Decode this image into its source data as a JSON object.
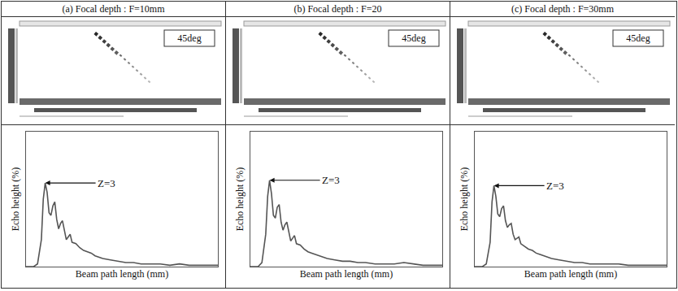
{
  "chart_data": [
    {
      "type": "line",
      "title": "(a) Focal depth : F=10mm",
      "image_label": "45deg",
      "x_label": "Beam path length (mm)",
      "y_label": "Echo height (%)",
      "annotations": [
        {
          "text": "Z=3",
          "x": 10,
          "y": 62
        }
      ],
      "x": [
        0,
        4,
        6,
        8,
        9,
        10,
        11,
        12,
        13,
        14,
        15,
        16,
        17,
        18,
        19,
        20,
        21,
        22,
        23,
        24,
        26,
        28,
        30,
        32,
        34,
        36,
        38,
        40,
        44,
        48,
        52,
        56,
        60,
        65,
        70,
        75,
        80,
        85,
        90,
        95,
        100
      ],
      "values": [
        0,
        0,
        2,
        20,
        50,
        62,
        55,
        40,
        38,
        45,
        48,
        35,
        28,
        32,
        34,
        26,
        20,
        22,
        24,
        18,
        17,
        14,
        12,
        11,
        10,
        8,
        7,
        6,
        5,
        4,
        3,
        3,
        2,
        2,
        2,
        1,
        2,
        1,
        1,
        1,
        1
      ],
      "color": "#555555",
      "xlim": [
        0,
        100
      ],
      "ylim": [
        0,
        100
      ],
      "grid": false,
      "tick_labels": false
    },
    {
      "type": "line",
      "title": "(b) Focal depth : F=20",
      "image_label": "45deg",
      "x_label": "Beam path length (mm)",
      "y_label": "Echo height (%)",
      "annotations": [
        {
          "text": "Z=3",
          "x": 10,
          "y": 64
        }
      ],
      "x": [
        0,
        4,
        6,
        8,
        9,
        10,
        11,
        12,
        13,
        14,
        15,
        16,
        17,
        18,
        19,
        20,
        21,
        22,
        23,
        24,
        26,
        28,
        30,
        32,
        34,
        36,
        38,
        40,
        44,
        48,
        52,
        56,
        60,
        65,
        70,
        75,
        80,
        85,
        90,
        95,
        100
      ],
      "values": [
        0,
        0,
        3,
        24,
        52,
        64,
        54,
        38,
        36,
        44,
        46,
        33,
        27,
        31,
        33,
        25,
        19,
        21,
        23,
        17,
        16,
        13,
        11,
        10,
        9,
        8,
        7,
        6,
        5,
        4,
        4,
        3,
        3,
        2,
        2,
        2,
        3,
        2,
        1,
        1,
        1
      ],
      "color": "#555555",
      "xlim": [
        0,
        100
      ],
      "ylim": [
        0,
        100
      ],
      "grid": false,
      "tick_labels": false
    },
    {
      "type": "line",
      "title": "(c) Focal depth : F=30mm",
      "image_label": "45deg",
      "x_label": "Beam path length (mm)",
      "y_label": "Echo height (%)",
      "annotations": [
        {
          "text": "Z=3",
          "x": 10,
          "y": 60
        }
      ],
      "x": [
        0,
        4,
        6,
        8,
        9,
        10,
        11,
        12,
        13,
        14,
        15,
        16,
        17,
        18,
        19,
        20,
        21,
        22,
        23,
        24,
        26,
        28,
        30,
        32,
        34,
        36,
        38,
        40,
        44,
        48,
        52,
        56,
        60,
        65,
        70,
        75,
        80,
        85,
        90,
        95,
        100
      ],
      "values": [
        0,
        0,
        2,
        18,
        48,
        60,
        52,
        39,
        37,
        43,
        45,
        34,
        29,
        31,
        32,
        24,
        20,
        21,
        22,
        17,
        15,
        13,
        12,
        10,
        9,
        8,
        7,
        6,
        5,
        4,
        3,
        3,
        2,
        2,
        2,
        2,
        1,
        1,
        1,
        1,
        1
      ],
      "color": "#555555",
      "xlim": [
        0,
        100
      ],
      "ylim": [
        0,
        100
      ],
      "grid": false,
      "tick_labels": false
    }
  ]
}
